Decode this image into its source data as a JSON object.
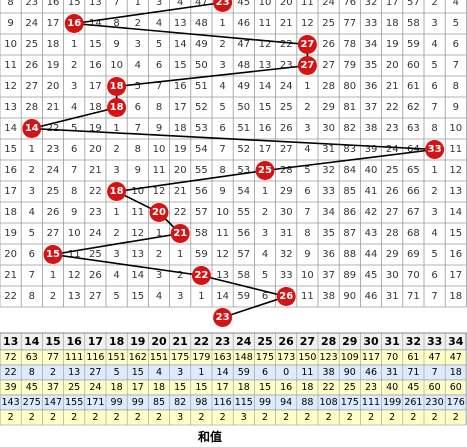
{
  "trend": {
    "rows": [
      [
        "8",
        "23",
        "16",
        "15",
        "13",
        "7",
        "1",
        "3",
        "4",
        "47",
        null,
        "45",
        "10",
        "20",
        "11",
        "24",
        "76",
        "32",
        "17",
        "57",
        "2",
        "4"
      ],
      [
        "9",
        "24",
        "17",
        null,
        "14",
        "8",
        "2",
        "4",
        "13",
        "48",
        "1",
        "46",
        "11",
        "21",
        "12",
        "25",
        "77",
        "33",
        "18",
        "58",
        "3",
        "5"
      ],
      [
        "10",
        "25",
        "18",
        "1",
        "15",
        "9",
        "3",
        "5",
        "14",
        "49",
        "2",
        "47",
        "12",
        "22",
        null,
        "26",
        "78",
        "34",
        "19",
        "59",
        "4",
        "6"
      ],
      [
        "11",
        "26",
        "19",
        "2",
        "16",
        "10",
        "4",
        "6",
        "15",
        "50",
        "3",
        "48",
        "13",
        "23",
        null,
        "27",
        "79",
        "35",
        "20",
        "60",
        "5",
        "7"
      ],
      [
        "12",
        "27",
        "20",
        "3",
        "17",
        null,
        "5",
        "7",
        "16",
        "51",
        "4",
        "49",
        "14",
        "24",
        "1",
        "28",
        "80",
        "36",
        "21",
        "61",
        "6",
        "8"
      ],
      [
        "13",
        "28",
        "21",
        "4",
        "18",
        null,
        "6",
        "8",
        "17",
        "52",
        "5",
        "50",
        "15",
        "25",
        "2",
        "29",
        "81",
        "37",
        "22",
        "62",
        "7",
        "9"
      ],
      [
        "14",
        null,
        "22",
        "5",
        "19",
        "1",
        "7",
        "9",
        "18",
        "53",
        "6",
        "51",
        "16",
        "26",
        "3",
        "30",
        "82",
        "38",
        "23",
        "63",
        "8",
        "10"
      ],
      [
        "15",
        "1",
        "23",
        "6",
        "20",
        "2",
        "8",
        "10",
        "19",
        "54",
        "7",
        "52",
        "17",
        "27",
        "4",
        "31",
        "83",
        "39",
        "24",
        "64",
        null,
        "11"
      ],
      [
        "16",
        "2",
        "24",
        "7",
        "21",
        "3",
        "9",
        "11",
        "20",
        "55",
        "8",
        "53",
        null,
        "28",
        "5",
        "32",
        "84",
        "40",
        "25",
        "65",
        "1",
        "12"
      ],
      [
        "17",
        "3",
        "25",
        "8",
        "22",
        null,
        "10",
        "12",
        "21",
        "56",
        "9",
        "54",
        "1",
        "29",
        "6",
        "33",
        "85",
        "41",
        "26",
        "66",
        "2",
        "13"
      ],
      [
        "18",
        "4",
        "26",
        "9",
        "23",
        "1",
        "11",
        null,
        "22",
        "57",
        "10",
        "55",
        "2",
        "30",
        "7",
        "34",
        "86",
        "42",
        "27",
        "67",
        "3",
        "14"
      ],
      [
        "19",
        "5",
        "27",
        "10",
        "24",
        "2",
        "12",
        "1",
        null,
        "58",
        "11",
        "56",
        "3",
        "31",
        "8",
        "35",
        "87",
        "43",
        "28",
        "68",
        "4",
        "15"
      ],
      [
        "20",
        "6",
        null,
        "11",
        "25",
        "3",
        "13",
        "2",
        "1",
        "59",
        "12",
        "57",
        "4",
        "32",
        "9",
        "36",
        "88",
        "44",
        "29",
        "69",
        "5",
        "16"
      ],
      [
        "21",
        "7",
        "1",
        "12",
        "26",
        "4",
        "14",
        "3",
        "2",
        null,
        "13",
        "58",
        "5",
        "33",
        "10",
        "37",
        "89",
        "45",
        "30",
        "70",
        "6",
        "17"
      ],
      [
        "22",
        "8",
        "2",
        "13",
        "27",
        "5",
        "15",
        "4",
        "3",
        "1",
        "14",
        "59",
        "6",
        null,
        "11",
        "38",
        "90",
        "46",
        "31",
        "71",
        "7",
        "18"
      ]
    ],
    "balls": [
      23,
      16,
      27,
      27,
      18,
      18,
      14,
      33,
      25,
      18,
      20,
      21,
      15,
      22,
      26,
      23
    ]
  },
  "stats": {
    "header": [
      13,
      14,
      15,
      16,
      17,
      18,
      19,
      20,
      21,
      22,
      23,
      24,
      25,
      26,
      27,
      28,
      29,
      30,
      31,
      32,
      33,
      34
    ],
    "rows": [
      [
        72,
        63,
        77,
        111,
        116,
        151,
        162,
        151,
        175,
        179,
        163,
        148,
        175,
        173,
        150,
        123,
        109,
        117,
        70,
        61,
        47,
        47
      ],
      [
        22,
        8,
        2,
        13,
        27,
        5,
        15,
        4,
        3,
        1,
        14,
        59,
        6,
        0,
        11,
        38,
        90,
        46,
        31,
        71,
        7,
        18
      ],
      [
        39,
        45,
        37,
        25,
        24,
        18,
        17,
        18,
        15,
        15,
        17,
        18,
        15,
        16,
        18,
        22,
        25,
        23,
        40,
        45,
        60,
        60
      ],
      [
        143,
        275,
        147,
        155,
        171,
        99,
        99,
        85,
        82,
        98,
        116,
        115,
        99,
        94,
        88,
        108,
        175,
        111,
        199,
        261,
        230,
        176
      ],
      [
        2,
        2,
        2,
        2,
        2,
        2,
        2,
        2,
        3,
        2,
        2,
        3,
        2,
        2,
        2,
        2,
        2,
        2,
        2,
        2,
        2,
        2
      ]
    ]
  },
  "footer": "和值"
}
